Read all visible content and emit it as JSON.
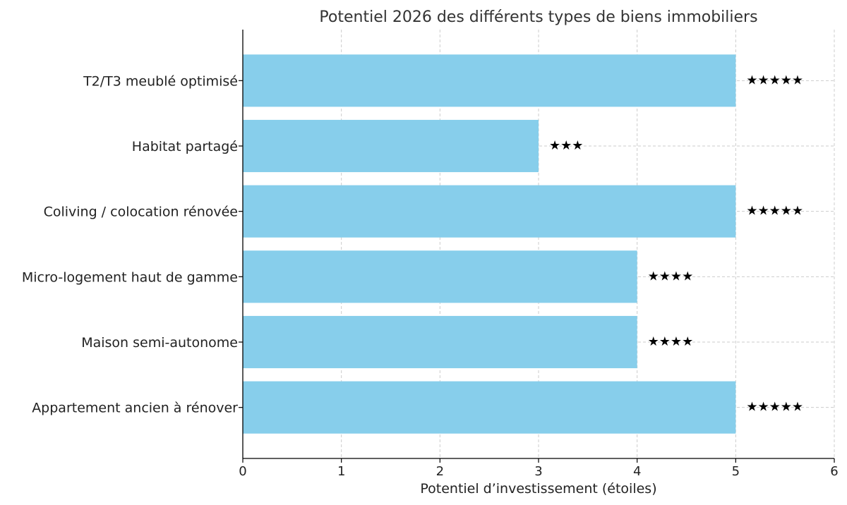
{
  "chart_data": {
    "type": "bar",
    "orientation": "horizontal",
    "title": "Potentiel 2026 des différents types de biens immobiliers",
    "xlabel": "Potentiel d’investissement (étoiles)",
    "ylabel": "",
    "xlim": [
      0,
      6
    ],
    "xticks": [
      "0",
      "1",
      "2",
      "3",
      "4",
      "5",
      "6"
    ],
    "grid": true,
    "categories": [
      "T2/T3 meublé optimisé",
      "Habitat partagé",
      "Coliving / colocation rénovée",
      "Micro-logement haut de gamme",
      "Maison semi-autonome",
      "Appartement ancien à rénover"
    ],
    "values": [
      5,
      3,
      5,
      4,
      4,
      5
    ],
    "data_labels": [
      "★★★★★",
      "★★★",
      "★★★★★",
      "★★★★",
      "★★★★",
      "★★★★★"
    ],
    "colors": {
      "bar": "#87ceeb",
      "grid": "#cccccc",
      "axis": "#000000"
    }
  }
}
